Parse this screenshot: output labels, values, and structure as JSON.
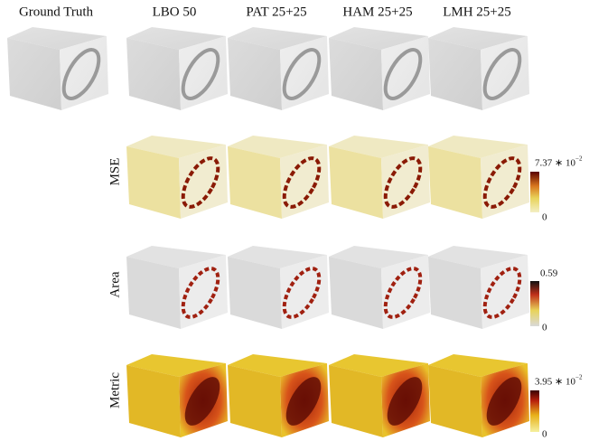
{
  "columns": [
    "Ground Truth",
    "LBO 50",
    "PAT 25+25",
    "HAM 25+25",
    "LMH 25+25"
  ],
  "rows": [
    {
      "label": "MSE",
      "colorbar": {
        "max": "7.37 ∗ 10",
        "max_exponent": "−2",
        "min": "0"
      }
    },
    {
      "label": "Area",
      "colorbar": {
        "max": "0.59",
        "min": "0"
      }
    },
    {
      "label": "Metric",
      "colorbar": {
        "max": "3.95 ∗ 10",
        "max_exponent": "−2",
        "min": "0"
      }
    }
  ]
}
